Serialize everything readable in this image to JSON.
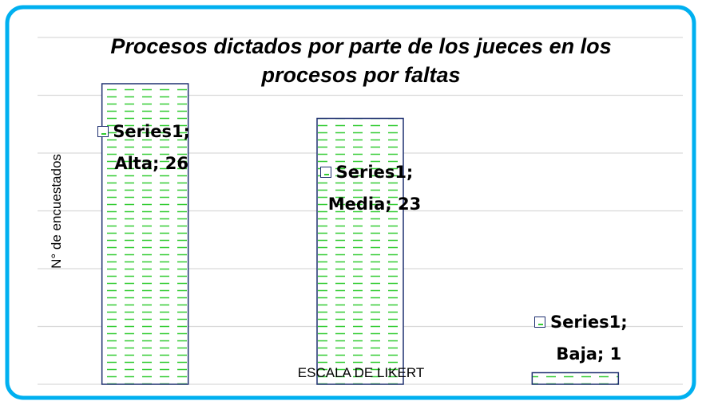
{
  "chart_data": {
    "type": "bar",
    "title": "Procesos dictados por parte de los jueces en los procesos por faltas",
    "xlabel": "ESCALA DE LIKERT",
    "ylabel": "N° de encuestados",
    "values": [
      26,
      23,
      1
    ],
    "value_labels": [
      "Series1;\nAlta; 26",
      "Series1;\nMedia; 23",
      "Series1;\nBaja; 1"
    ],
    "color": "#33cc33",
    "edge_color": "#1f3070",
    "ylim": [
      0,
      30
    ],
    "yticks": [
      0,
      5,
      10,
      15,
      20,
      25,
      30
    ],
    "grid": true
  }
}
